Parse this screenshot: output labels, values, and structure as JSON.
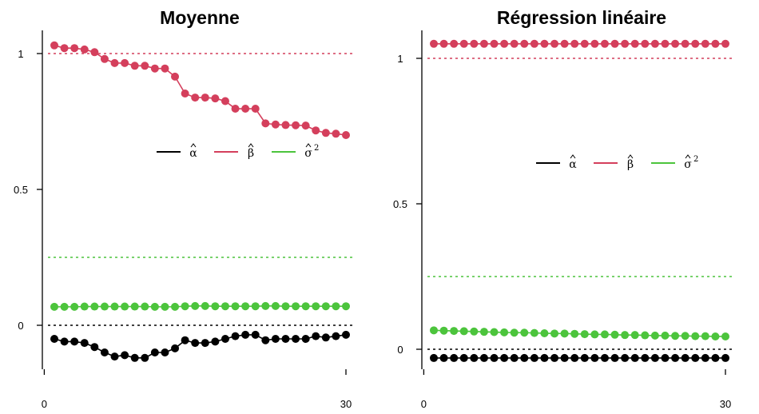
{
  "chart_data": [
    {
      "type": "line",
      "title": "Moyenne",
      "xlabel": "",
      "ylabel": "",
      "xlim": [
        1,
        30
      ],
      "ylim": [
        -0.15,
        1.07
      ],
      "xticks": [
        "0",
        "30"
      ],
      "yticks": [
        "0",
        "0.5",
        "1"
      ],
      "legend": {
        "placement": "center-right",
        "entries": [
          "α",
          "β",
          "σ"
        ],
        "sup": [
          "",
          "",
          "2"
        ]
      },
      "reference_lines": [
        {
          "value": 1,
          "color": "#d43f5c",
          "style": "dotted"
        },
        {
          "value": 0.25,
          "color": "#4cc43c",
          "style": "dotted"
        },
        {
          "value": 0,
          "color": "#000000",
          "style": "dotted"
        }
      ],
      "x": [
        1,
        2,
        3,
        4,
        5,
        6,
        7,
        8,
        9,
        10,
        11,
        12,
        13,
        14,
        15,
        16,
        17,
        18,
        19,
        20,
        21,
        22,
        23,
        24,
        25,
        26,
        27,
        28,
        29,
        30
      ],
      "series": [
        {
          "color": "#d43f5c",
          "values": [
            1.03,
            1.02,
            1.02,
            1.015,
            1.005,
            0.98,
            0.965,
            0.965,
            0.955,
            0.955,
            0.945,
            0.945,
            0.915,
            0.853,
            0.838,
            0.838,
            0.835,
            0.825,
            0.797,
            0.797,
            0.797,
            0.743,
            0.739,
            0.737,
            0.736,
            0.735,
            0.717,
            0.708,
            0.705,
            0.7
          ]
        },
        {
          "color": "#000000",
          "values": [
            -0.05,
            -0.06,
            -0.06,
            -0.065,
            -0.08,
            -0.1,
            -0.115,
            -0.11,
            -0.12,
            -0.12,
            -0.1,
            -0.1,
            -0.085,
            -0.055,
            -0.065,
            -0.065,
            -0.06,
            -0.05,
            -0.04,
            -0.035,
            -0.035,
            -0.055,
            -0.05,
            -0.05,
            -0.05,
            -0.05,
            -0.04,
            -0.045,
            -0.04,
            -0.035
          ]
        },
        {
          "color": "#4cc43c",
          "values": [
            0.068,
            0.068,
            0.068,
            0.069,
            0.069,
            0.069,
            0.069,
            0.069,
            0.069,
            0.069,
            0.068,
            0.068,
            0.068,
            0.07,
            0.071,
            0.071,
            0.07,
            0.07,
            0.07,
            0.07,
            0.07,
            0.071,
            0.071,
            0.07,
            0.07,
            0.07,
            0.07,
            0.07,
            0.07,
            0.07
          ]
        }
      ]
    },
    {
      "type": "line",
      "title": "Régression linéaire",
      "xlabel": "",
      "ylabel": "",
      "xlim": [
        1,
        30
      ],
      "ylim": [
        -0.05,
        1.1
      ],
      "xticks": [
        "0",
        "30"
      ],
      "yticks": [
        "0",
        "0.5",
        "1"
      ],
      "legend": {
        "placement": "center-right",
        "entries": [
          "α",
          "β",
          "σ"
        ],
        "sup": [
          "",
          "",
          "2"
        ]
      },
      "reference_lines": [
        {
          "value": 1,
          "color": "#d43f5c",
          "style": "dotted"
        },
        {
          "value": 0.25,
          "color": "#4cc43c",
          "style": "dotted"
        },
        {
          "value": 0,
          "color": "#000000",
          "style": "dotted"
        }
      ],
      "x": [
        1,
        2,
        3,
        4,
        5,
        6,
        7,
        8,
        9,
        10,
        11,
        12,
        13,
        14,
        15,
        16,
        17,
        18,
        19,
        20,
        21,
        22,
        23,
        24,
        25,
        26,
        27,
        28,
        29,
        30
      ],
      "series": [
        {
          "color": "#d43f5c",
          "values": [
            1.05,
            1.05,
            1.05,
            1.05,
            1.05,
            1.05,
            1.05,
            1.05,
            1.05,
            1.05,
            1.05,
            1.05,
            1.05,
            1.05,
            1.05,
            1.05,
            1.05,
            1.05,
            1.05,
            1.05,
            1.05,
            1.05,
            1.05,
            1.05,
            1.05,
            1.05,
            1.05,
            1.05,
            1.05,
            1.05
          ]
        },
        {
          "color": "#000000",
          "values": [
            -0.03,
            -0.03,
            -0.03,
            -0.03,
            -0.03,
            -0.03,
            -0.03,
            -0.03,
            -0.03,
            -0.03,
            -0.03,
            -0.03,
            -0.03,
            -0.03,
            -0.03,
            -0.03,
            -0.03,
            -0.03,
            -0.03,
            -0.03,
            -0.03,
            -0.03,
            -0.03,
            -0.03,
            -0.03,
            -0.03,
            -0.03,
            -0.03,
            -0.03,
            -0.03
          ]
        },
        {
          "color": "#4cc43c",
          "values": [
            0.065,
            0.064,
            0.063,
            0.062,
            0.061,
            0.06,
            0.059,
            0.058,
            0.057,
            0.057,
            0.056,
            0.055,
            0.054,
            0.054,
            0.053,
            0.052,
            0.051,
            0.051,
            0.05,
            0.049,
            0.049,
            0.048,
            0.047,
            0.047,
            0.046,
            0.046,
            0.045,
            0.045,
            0.044,
            0.044
          ]
        }
      ]
    }
  ]
}
